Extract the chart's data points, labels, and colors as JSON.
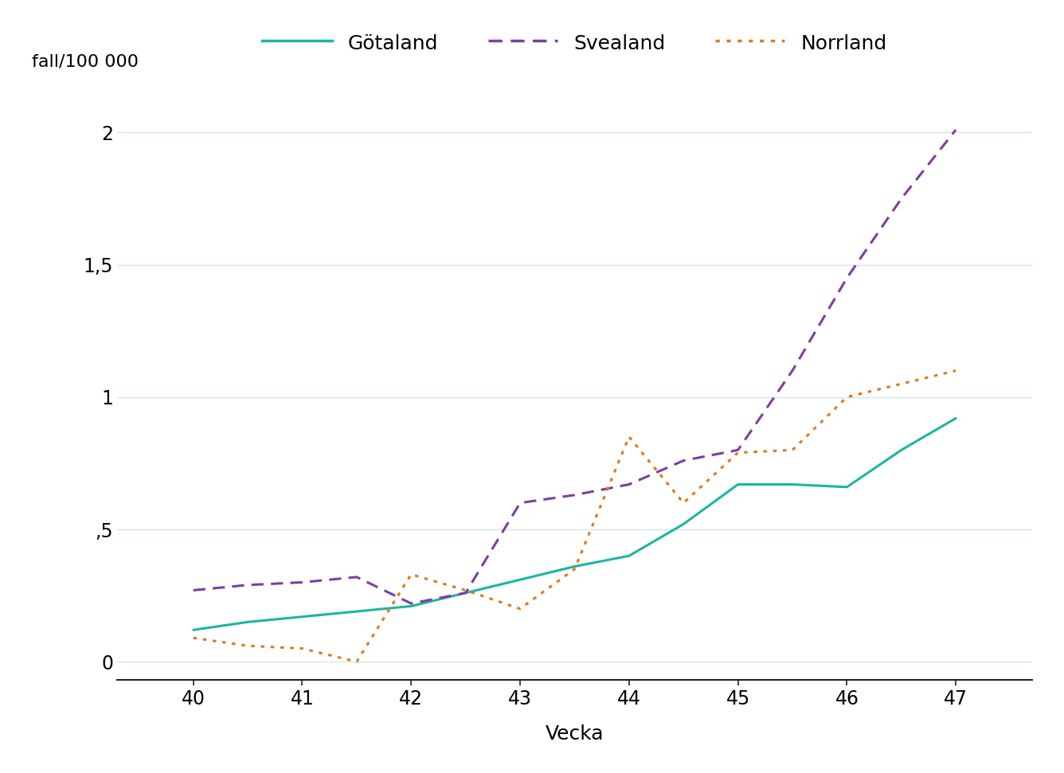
{
  "x": [
    40,
    40.5,
    41,
    41.5,
    42,
    42.5,
    43,
    43.5,
    44,
    44.5,
    45,
    45.5,
    46,
    46.5,
    47
  ],
  "gotaland": [
    0.12,
    0.15,
    0.17,
    0.19,
    0.21,
    0.26,
    0.31,
    0.36,
    0.4,
    0.52,
    0.67,
    0.67,
    0.66,
    0.8,
    0.92
  ],
  "svealand": [
    0.27,
    0.29,
    0.3,
    0.32,
    0.22,
    0.26,
    0.6,
    0.63,
    0.67,
    0.76,
    0.8,
    1.1,
    1.45,
    1.75,
    2.01
  ],
  "norrland": [
    0.09,
    0.06,
    0.05,
    0.0,
    0.33,
    0.27,
    0.2,
    0.35,
    0.85,
    0.6,
    0.79,
    0.8,
    1.0,
    1.05,
    1.1
  ],
  "gotaland_color": "#1db5a0",
  "svealand_color": "#7b3fa0",
  "norrland_color": "#e07820",
  "ylabel": "fall/100 000",
  "xlabel": "Vecka",
  "legend_labels": [
    "Götaland",
    "Svealand",
    "Norrland"
  ],
  "yticks": [
    0,
    0.5,
    1.0,
    1.5,
    2.0
  ],
  "ytick_labels": [
    "0",
    ",5",
    "1",
    "1,5",
    "2"
  ],
  "ylim": [
    -0.07,
    2.15
  ],
  "xlim": [
    39.3,
    47.7
  ],
  "grid_color": "#cce8ee",
  "background_color": "#ffffff"
}
